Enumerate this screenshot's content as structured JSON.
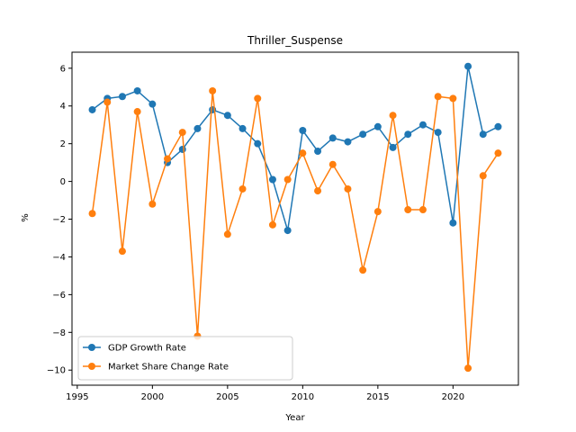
{
  "chart_data": {
    "type": "line",
    "title": "Thriller_Suspense",
    "xlabel": "Year",
    "ylabel": "%",
    "xlim": [
      1994.65,
      2024.35
    ],
    "ylim": [
      -10.8,
      6.85
    ],
    "xticks": [
      1995,
      2000,
      2005,
      2010,
      2015,
      2020
    ],
    "yticks": [
      -10,
      -8,
      -6,
      -4,
      -2,
      0,
      2,
      4,
      6
    ],
    "grid": false,
    "legend_position": "lower-left",
    "x": [
      1996,
      1997,
      1998,
      1999,
      2000,
      2001,
      2002,
      2003,
      2004,
      2005,
      2006,
      2007,
      2008,
      2009,
      2010,
      2011,
      2012,
      2013,
      2014,
      2015,
      2016,
      2017,
      2018,
      2019,
      2020,
      2021,
      2022,
      2023
    ],
    "series": [
      {
        "name": "GDP Growth Rate",
        "color": "#1f77b4",
        "values": [
          3.8,
          4.4,
          4.5,
          4.8,
          4.1,
          1.0,
          1.7,
          2.8,
          3.8,
          3.5,
          2.8,
          2.0,
          0.1,
          -2.6,
          2.7,
          1.6,
          2.3,
          2.1,
          2.5,
          2.9,
          1.8,
          2.5,
          3.0,
          2.6,
          -2.2,
          6.1,
          2.5,
          2.9
        ]
      },
      {
        "name": "Market Share Change Rate",
        "color": "#ff7f0e",
        "values": [
          -1.7,
          4.2,
          -3.7,
          3.7,
          -1.2,
          1.2,
          2.6,
          -8.2,
          4.8,
          -2.8,
          -0.4,
          4.4,
          -2.3,
          0.1,
          1.5,
          -0.5,
          0.9,
          -0.4,
          -4.7,
          -1.6,
          3.5,
          -1.5,
          -1.5,
          4.5,
          4.4,
          -9.9,
          0.3,
          1.5
        ]
      }
    ]
  }
}
